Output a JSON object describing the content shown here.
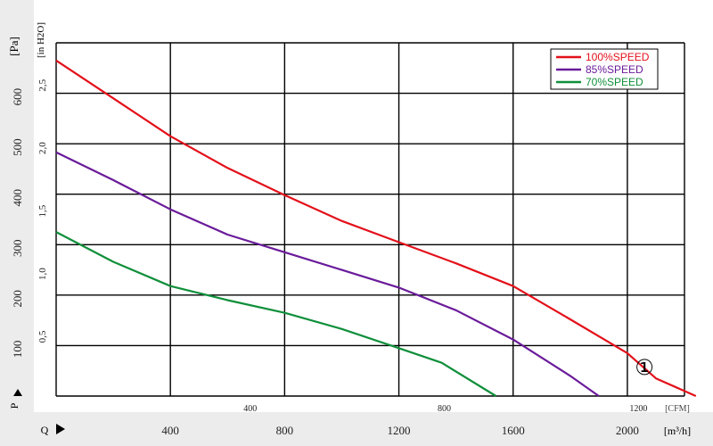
{
  "chart_data": {
    "type": "line",
    "y_left_label": "[Pa]",
    "y_inner_label": "[in H2O]",
    "y_pressure_symbol": "P",
    "x_flow_symbol": "Q",
    "x_upper_unit": "[CFM]",
    "x_lower_unit": "[m³/h]",
    "pa_ticks": [
      "100",
      "200",
      "300",
      "400",
      "500",
      "600"
    ],
    "inh2o_ticks": [
      "0.5",
      "1.0",
      "1.5",
      "2.0",
      "2.5"
    ],
    "cfm_ticks": [
      "400",
      "800",
      "1200"
    ],
    "m3h_ticks": [
      "400",
      "800",
      "1200",
      "1600",
      "2000"
    ],
    "xlim_m3h": [
      0,
      2200
    ],
    "ylim_pa": [
      0,
      700
    ],
    "grid": true,
    "legend_position": "top-right",
    "marker": "①",
    "series": [
      {
        "name": "100%SPEED",
        "color": "#e3101a",
        "x": [
          0,
          200,
          400,
          600,
          800,
          1000,
          1200,
          1400,
          1600,
          1800,
          2000,
          2100,
          2240
        ],
        "y": [
          665,
          590,
          515,
          452,
          398,
          347,
          305,
          263,
          218,
          152,
          85,
          35,
          0
        ]
      },
      {
        "name": "85%SPEED",
        "color": "#6a1b9a",
        "x": [
          0,
          200,
          400,
          600,
          800,
          1000,
          1200,
          1400,
          1600,
          1800,
          1900
        ],
        "y": [
          483,
          428,
          370,
          320,
          285,
          250,
          215,
          170,
          112,
          40,
          0
        ]
      },
      {
        "name": "70%SPEED",
        "color": "#0f8f3a",
        "x": [
          0,
          200,
          400,
          600,
          800,
          1000,
          1200,
          1350,
          1540
        ],
        "y": [
          325,
          266,
          218,
          190,
          165,
          133,
          95,
          66,
          0
        ]
      }
    ]
  },
  "colors": {
    "grid": "#000000",
    "axis_band": "#e9e9e9"
  }
}
